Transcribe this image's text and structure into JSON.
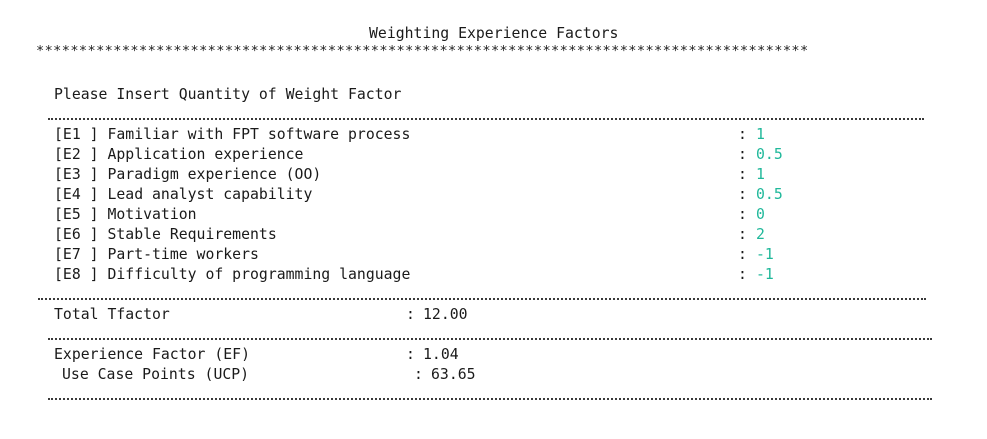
{
  "title": "Weighting Experience Factors",
  "separator_stars": "******************************************************************************************",
  "prompt": "Please Insert Quantity of Weight Factor",
  "items": [
    {
      "code": "[E1 ]",
      "label": "Familiar with FPT software process",
      "value": "1"
    },
    {
      "code": "[E2 ]",
      "label": "Application experience",
      "value": "0.5"
    },
    {
      "code": "[E3 ]",
      "label": "Paradigm experience (OO)",
      "value": "1"
    },
    {
      "code": "[E4 ]",
      "label": "Lead analyst capability",
      "value": "0.5"
    },
    {
      "code": "[E5 ]",
      "label": "Motivation",
      "value": "0"
    },
    {
      "code": "[E6 ]",
      "label": "Stable Requirements",
      "value": "2"
    },
    {
      "code": "[E7 ]",
      "label": "Part-time workers",
      "value": "-1"
    },
    {
      "code": "[E8 ]",
      "label": "Difficulty of programming language",
      "value": "-1"
    }
  ],
  "total": {
    "label": "Total Tfactor",
    "value": "12.00"
  },
  "ef": {
    "label": "Experience Factor (EF)",
    "value": "1.04"
  },
  "ucp": {
    "label": "Use Case Points (UCP)",
    "value": "63.65"
  },
  "colon": ":",
  "colors": {
    "value_text": "#1fb89a",
    "text": "#1a1a1a"
  }
}
